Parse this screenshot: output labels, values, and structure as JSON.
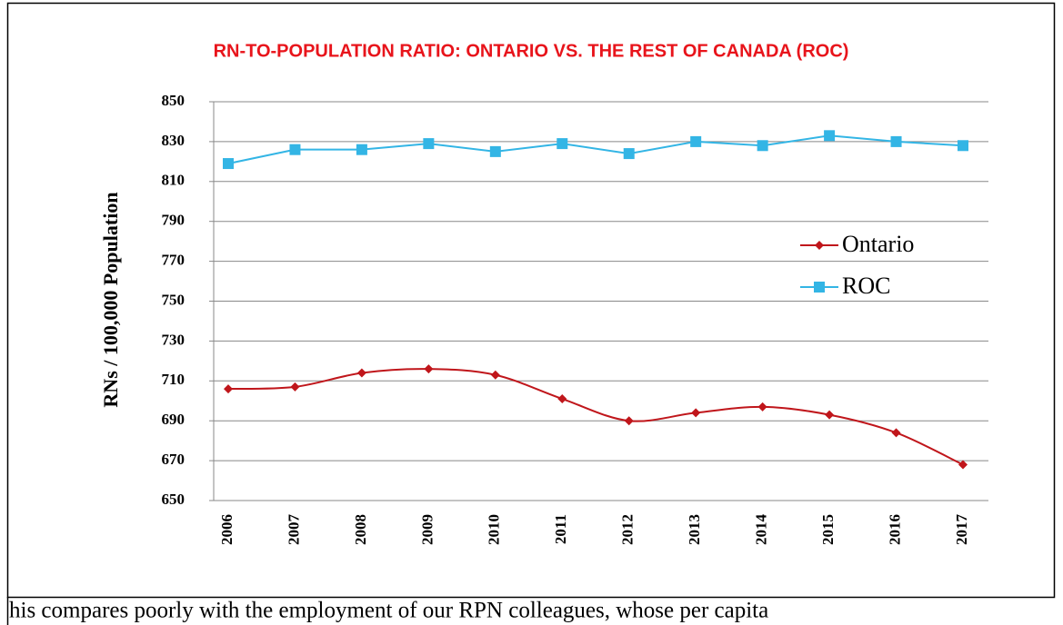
{
  "chart_data": {
    "type": "line",
    "title": "RN-TO-POPULATION RATIO: ONTARIO VS. THE REST OF CANADA (ROC)",
    "y_label": "RNs / 100,000 Population",
    "categories": [
      "2006",
      "2007",
      "2008",
      "2009",
      "2010",
      "2011",
      "2012",
      "2013",
      "2014",
      "2015",
      "2016",
      "2017"
    ],
    "series": [
      {
        "name": "Ontario",
        "color": "#c0161b",
        "marker": "diamond",
        "smooth": true,
        "values": [
          706,
          707,
          714,
          716,
          713,
          701,
          690,
          694,
          697,
          693,
          684,
          668
        ]
      },
      {
        "name": "ROC",
        "color": "#33b5e5",
        "marker": "square",
        "smooth": false,
        "values": [
          819,
          826,
          826,
          829,
          825,
          829,
          824,
          830,
          828,
          833,
          830,
          828
        ]
      }
    ],
    "ylim": [
      650,
      850
    ],
    "yticks": [
      650,
      670,
      690,
      710,
      730,
      750,
      770,
      790,
      810,
      830,
      850
    ],
    "grid": true,
    "legend": "right"
  },
  "caption_text": "his compares poorly with the employment of our RPN colleagues, whose per capita"
}
